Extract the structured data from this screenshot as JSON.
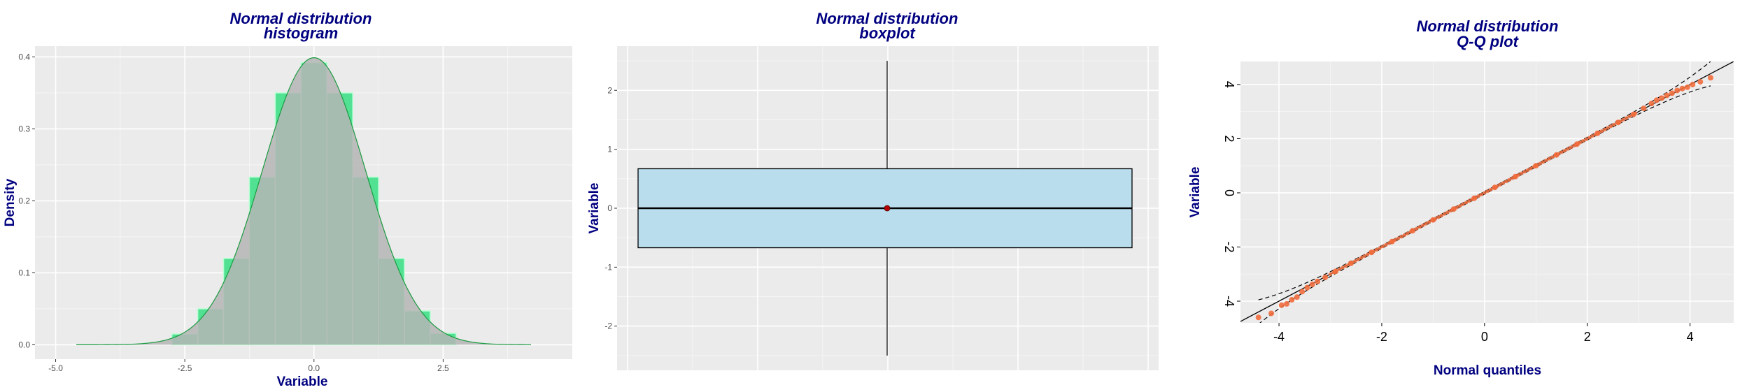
{
  "chart_data": [
    {
      "type": "bar",
      "title": "Normal distribution\nhistogram",
      "title_lines": [
        "Normal distribution",
        "histogram"
      ],
      "xlabel": "Variable",
      "ylabel": "Density",
      "xlim": [
        -5.4,
        5.0
      ],
      "ylim": [
        -0.02,
        0.415
      ],
      "xticks": [
        -5.0,
        -2.5,
        0.0,
        2.5
      ],
      "xtick_labels": [
        "-5.0",
        "-2.5",
        "0.0",
        "2.5"
      ],
      "yticks": [
        0.0,
        0.1,
        0.2,
        0.3,
        0.4
      ],
      "ytick_labels": [
        "0.0",
        "0.1",
        "0.2",
        "0.3",
        "0.4"
      ],
      "bin_width": 0.5,
      "bins": [
        {
          "left": -2.75,
          "value": 0.015
        },
        {
          "left": -2.25,
          "value": 0.05
        },
        {
          "left": -1.75,
          "value": 0.12
        },
        {
          "left": -1.25,
          "value": 0.233
        },
        {
          "left": -0.75,
          "value": 0.35
        },
        {
          "left": -0.25,
          "value": 0.392
        },
        {
          "left": 0.25,
          "value": 0.35
        },
        {
          "left": 0.75,
          "value": 0.233
        },
        {
          "left": 1.25,
          "value": 0.12
        },
        {
          "left": 1.75,
          "value": 0.047
        },
        {
          "left": 2.25,
          "value": 0.016
        }
      ],
      "density_curve": {
        "type": "normal",
        "mean": 0.0,
        "sd": 1.0,
        "from": -4.6,
        "to": 4.2
      },
      "colors": {
        "bar_fill": "#44e08a",
        "bar_border": "#b8ffd4",
        "density_fill": "#b5b5b5",
        "density_line": "#1a9b40",
        "panel": "#ebebeb",
        "grid": "#ffffff"
      },
      "grid": true
    },
    {
      "type": "boxplot",
      "title": "Normal distribution\nboxplot",
      "title_lines": [
        "Normal distribution",
        "boxplot"
      ],
      "xlabel": "",
      "ylabel": "Variable",
      "ylim": [
        -2.75,
        2.75
      ],
      "yticks": [
        -2,
        -1,
        0,
        1,
        2
      ],
      "ytick_labels": [
        "-2",
        "-1",
        "0",
        "1",
        "2"
      ],
      "stats": {
        "whisker_low": -2.5,
        "q1": -0.67,
        "median": 0.0,
        "q3": 0.67,
        "whisker_high": 2.5,
        "mean": 0.0
      },
      "colors": {
        "box_fill": "#b9dded",
        "box_border": "#000000",
        "mean_point": "#b30000",
        "panel": "#ebebeb",
        "grid": "#ffffff"
      },
      "grid": true
    },
    {
      "type": "scatter",
      "title": "Normal distribution\nQ-Q plot",
      "title_lines": [
        "Normal distribution",
        "Q-Q plot"
      ],
      "xlabel": "Normal quantiles",
      "ylabel": "Variable",
      "xlim": [
        -4.75,
        4.85
      ],
      "ylim": [
        -4.8,
        4.85
      ],
      "xticks": [
        -4,
        -2,
        0,
        2,
        4
      ],
      "xtick_labels": [
        "-4",
        "-2",
        "0",
        "2",
        "4"
      ],
      "yticks": [
        -4,
        -2,
        0,
        2,
        4
      ],
      "ytick_labels": [
        "-4",
        "-2",
        "0",
        "2",
        "4"
      ],
      "points": [
        [
          -4.4,
          -4.6
        ],
        [
          -4.15,
          -4.45
        ],
        [
          -3.95,
          -4.15
        ],
        [
          -3.85,
          -4.1
        ],
        [
          -3.75,
          -3.95
        ],
        [
          -3.65,
          -3.85
        ],
        [
          -3.55,
          -3.65
        ],
        [
          -3.45,
          -3.5
        ],
        [
          -3.35,
          -3.38
        ],
        [
          -3.25,
          -3.27
        ],
        [
          -3.1,
          -3.12
        ],
        [
          -2.9,
          -2.9
        ],
        [
          -2.6,
          -2.6
        ],
        [
          -2.2,
          -2.2
        ],
        [
          -1.8,
          -1.8
        ],
        [
          -1.4,
          -1.4
        ],
        [
          -1.0,
          -1.0
        ],
        [
          -0.6,
          -0.6
        ],
        [
          -0.2,
          -0.2
        ],
        [
          0.2,
          0.2
        ],
        [
          0.6,
          0.6
        ],
        [
          1.0,
          1.0
        ],
        [
          1.4,
          1.4
        ],
        [
          1.8,
          1.8
        ],
        [
          2.2,
          2.2
        ],
        [
          2.6,
          2.6
        ],
        [
          2.9,
          2.9
        ],
        [
          3.1,
          3.12
        ],
        [
          3.25,
          3.3
        ],
        [
          3.35,
          3.42
        ],
        [
          3.45,
          3.5
        ],
        [
          3.55,
          3.6
        ],
        [
          3.65,
          3.68
        ],
        [
          3.75,
          3.78
        ],
        [
          3.85,
          3.85
        ],
        [
          3.95,
          3.9
        ],
        [
          4.05,
          4.0
        ],
        [
          4.2,
          4.1
        ],
        [
          4.4,
          4.25
        ]
      ],
      "reference_line": {
        "slope": 1.0,
        "intercept": 0.0
      },
      "confidence_band_halfwidth": {
        "center": 0.05,
        "at_extreme_x": 4.4,
        "at_extreme": 0.45
      },
      "colors": {
        "points": "#f26d3d",
        "ref_line": "#000000",
        "band": "#000000",
        "panel": "#ebebeb",
        "grid": "#ffffff"
      },
      "grid": true
    }
  ]
}
